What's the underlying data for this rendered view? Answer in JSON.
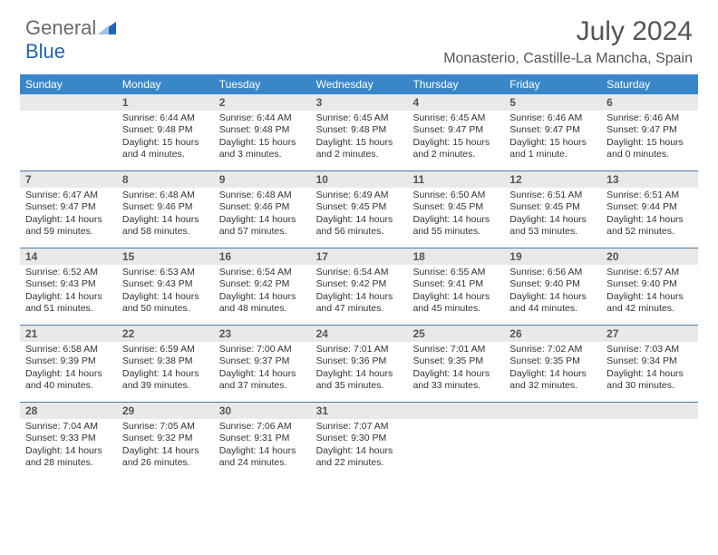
{
  "brand": {
    "name1": "General",
    "name2": "Blue"
  },
  "title": "July 2024",
  "location": "Monasterio, Castille-La Mancha, Spain",
  "colors": {
    "header_bar": "#3a87c8",
    "band": "#e9e9e9",
    "week_divider": "#4a7ba8",
    "text": "#333333",
    "brand_gray": "#6a6a6a",
    "brand_blue": "#2066b0"
  },
  "dow": [
    "Sunday",
    "Monday",
    "Tuesday",
    "Wednesday",
    "Thursday",
    "Friday",
    "Saturday"
  ],
  "weeks": [
    [
      {
        "n": "",
        "sr": "",
        "ss": "",
        "dl": ""
      },
      {
        "n": "1",
        "sr": "Sunrise: 6:44 AM",
        "ss": "Sunset: 9:48 PM",
        "dl": "Daylight: 15 hours and 4 minutes."
      },
      {
        "n": "2",
        "sr": "Sunrise: 6:44 AM",
        "ss": "Sunset: 9:48 PM",
        "dl": "Daylight: 15 hours and 3 minutes."
      },
      {
        "n": "3",
        "sr": "Sunrise: 6:45 AM",
        "ss": "Sunset: 9:48 PM",
        "dl": "Daylight: 15 hours and 2 minutes."
      },
      {
        "n": "4",
        "sr": "Sunrise: 6:45 AM",
        "ss": "Sunset: 9:47 PM",
        "dl": "Daylight: 15 hours and 2 minutes."
      },
      {
        "n": "5",
        "sr": "Sunrise: 6:46 AM",
        "ss": "Sunset: 9:47 PM",
        "dl": "Daylight: 15 hours and 1 minute."
      },
      {
        "n": "6",
        "sr": "Sunrise: 6:46 AM",
        "ss": "Sunset: 9:47 PM",
        "dl": "Daylight: 15 hours and 0 minutes."
      }
    ],
    [
      {
        "n": "7",
        "sr": "Sunrise: 6:47 AM",
        "ss": "Sunset: 9:47 PM",
        "dl": "Daylight: 14 hours and 59 minutes."
      },
      {
        "n": "8",
        "sr": "Sunrise: 6:48 AM",
        "ss": "Sunset: 9:46 PM",
        "dl": "Daylight: 14 hours and 58 minutes."
      },
      {
        "n": "9",
        "sr": "Sunrise: 6:48 AM",
        "ss": "Sunset: 9:46 PM",
        "dl": "Daylight: 14 hours and 57 minutes."
      },
      {
        "n": "10",
        "sr": "Sunrise: 6:49 AM",
        "ss": "Sunset: 9:45 PM",
        "dl": "Daylight: 14 hours and 56 minutes."
      },
      {
        "n": "11",
        "sr": "Sunrise: 6:50 AM",
        "ss": "Sunset: 9:45 PM",
        "dl": "Daylight: 14 hours and 55 minutes."
      },
      {
        "n": "12",
        "sr": "Sunrise: 6:51 AM",
        "ss": "Sunset: 9:45 PM",
        "dl": "Daylight: 14 hours and 53 minutes."
      },
      {
        "n": "13",
        "sr": "Sunrise: 6:51 AM",
        "ss": "Sunset: 9:44 PM",
        "dl": "Daylight: 14 hours and 52 minutes."
      }
    ],
    [
      {
        "n": "14",
        "sr": "Sunrise: 6:52 AM",
        "ss": "Sunset: 9:43 PM",
        "dl": "Daylight: 14 hours and 51 minutes."
      },
      {
        "n": "15",
        "sr": "Sunrise: 6:53 AM",
        "ss": "Sunset: 9:43 PM",
        "dl": "Daylight: 14 hours and 50 minutes."
      },
      {
        "n": "16",
        "sr": "Sunrise: 6:54 AM",
        "ss": "Sunset: 9:42 PM",
        "dl": "Daylight: 14 hours and 48 minutes."
      },
      {
        "n": "17",
        "sr": "Sunrise: 6:54 AM",
        "ss": "Sunset: 9:42 PM",
        "dl": "Daylight: 14 hours and 47 minutes."
      },
      {
        "n": "18",
        "sr": "Sunrise: 6:55 AM",
        "ss": "Sunset: 9:41 PM",
        "dl": "Daylight: 14 hours and 45 minutes."
      },
      {
        "n": "19",
        "sr": "Sunrise: 6:56 AM",
        "ss": "Sunset: 9:40 PM",
        "dl": "Daylight: 14 hours and 44 minutes."
      },
      {
        "n": "20",
        "sr": "Sunrise: 6:57 AM",
        "ss": "Sunset: 9:40 PM",
        "dl": "Daylight: 14 hours and 42 minutes."
      }
    ],
    [
      {
        "n": "21",
        "sr": "Sunrise: 6:58 AM",
        "ss": "Sunset: 9:39 PM",
        "dl": "Daylight: 14 hours and 40 minutes."
      },
      {
        "n": "22",
        "sr": "Sunrise: 6:59 AM",
        "ss": "Sunset: 9:38 PM",
        "dl": "Daylight: 14 hours and 39 minutes."
      },
      {
        "n": "23",
        "sr": "Sunrise: 7:00 AM",
        "ss": "Sunset: 9:37 PM",
        "dl": "Daylight: 14 hours and 37 minutes."
      },
      {
        "n": "24",
        "sr": "Sunrise: 7:01 AM",
        "ss": "Sunset: 9:36 PM",
        "dl": "Daylight: 14 hours and 35 minutes."
      },
      {
        "n": "25",
        "sr": "Sunrise: 7:01 AM",
        "ss": "Sunset: 9:35 PM",
        "dl": "Daylight: 14 hours and 33 minutes."
      },
      {
        "n": "26",
        "sr": "Sunrise: 7:02 AM",
        "ss": "Sunset: 9:35 PM",
        "dl": "Daylight: 14 hours and 32 minutes."
      },
      {
        "n": "27",
        "sr": "Sunrise: 7:03 AM",
        "ss": "Sunset: 9:34 PM",
        "dl": "Daylight: 14 hours and 30 minutes."
      }
    ],
    [
      {
        "n": "28",
        "sr": "Sunrise: 7:04 AM",
        "ss": "Sunset: 9:33 PM",
        "dl": "Daylight: 14 hours and 28 minutes."
      },
      {
        "n": "29",
        "sr": "Sunrise: 7:05 AM",
        "ss": "Sunset: 9:32 PM",
        "dl": "Daylight: 14 hours and 26 minutes."
      },
      {
        "n": "30",
        "sr": "Sunrise: 7:06 AM",
        "ss": "Sunset: 9:31 PM",
        "dl": "Daylight: 14 hours and 24 minutes."
      },
      {
        "n": "31",
        "sr": "Sunrise: 7:07 AM",
        "ss": "Sunset: 9:30 PM",
        "dl": "Daylight: 14 hours and 22 minutes."
      },
      {
        "n": "",
        "sr": "",
        "ss": "",
        "dl": ""
      },
      {
        "n": "",
        "sr": "",
        "ss": "",
        "dl": ""
      },
      {
        "n": "",
        "sr": "",
        "ss": "",
        "dl": ""
      }
    ]
  ]
}
